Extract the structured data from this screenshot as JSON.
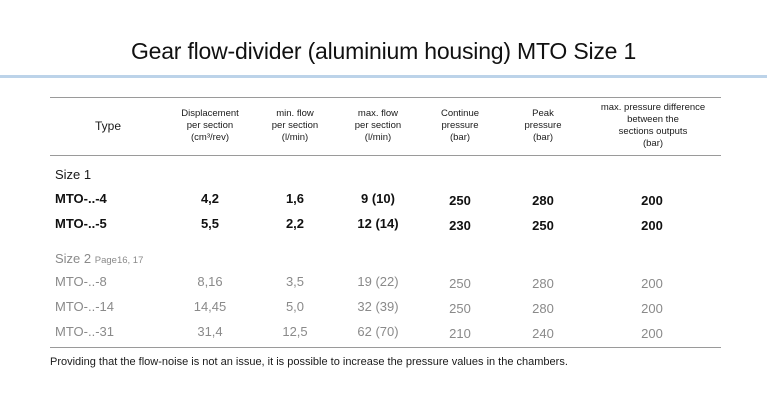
{
  "title": "Gear flow-divider (aluminium housing) MTO Size 1",
  "headers": {
    "type": "Type",
    "displacement": [
      "Displacement",
      "per section",
      "(cm³/rev)"
    ],
    "min_flow": [
      "min. flow",
      "per section",
      "(l/min)"
    ],
    "max_flow": [
      "max. flow",
      "per section",
      "(l/min)"
    ],
    "continue_pressure": [
      "Continue",
      "pressure",
      "(bar)"
    ],
    "peak_pressure": [
      "Peak",
      "pressure",
      "(bar)"
    ],
    "max_pressure_diff": [
      "max. pressure difference",
      "between the",
      "sections outputs",
      "(bar)"
    ]
  },
  "size1": {
    "label": "Size 1",
    "rows": [
      {
        "type": "MTO-..-4",
        "displacement": "4,2",
        "min_flow": "1,6",
        "max_flow": "9 (10)",
        "continue": "250",
        "peak": "280",
        "max_diff": "200"
      },
      {
        "type": "MTO-..-5",
        "displacement": "5,5",
        "min_flow": "2,2",
        "max_flow": "12 (14)",
        "continue": "230",
        "peak": "250",
        "max_diff": "200"
      }
    ]
  },
  "size2": {
    "label": "Size 2",
    "page_ref": "Page16, 17",
    "rows": [
      {
        "type": "MTO-..-8",
        "displacement": "8,16",
        "min_flow": "3,5",
        "max_flow": "19 (22)",
        "continue": "250",
        "peak": "280",
        "max_diff": "200"
      },
      {
        "type": "MTO-..-14",
        "displacement": "14,45",
        "min_flow": "5,0",
        "max_flow": "32 (39)",
        "continue": "250",
        "peak": "280",
        "max_diff": "200"
      },
      {
        "type": "MTO-..-31",
        "displacement": "31,4",
        "min_flow": "12,5",
        "max_flow": "62 (70)",
        "continue": "210",
        "peak": "240",
        "max_diff": "200"
      }
    ]
  },
  "footnote": "Providing that the flow-noise is not an issue, it is possible to increase the pressure values in the chambers."
}
